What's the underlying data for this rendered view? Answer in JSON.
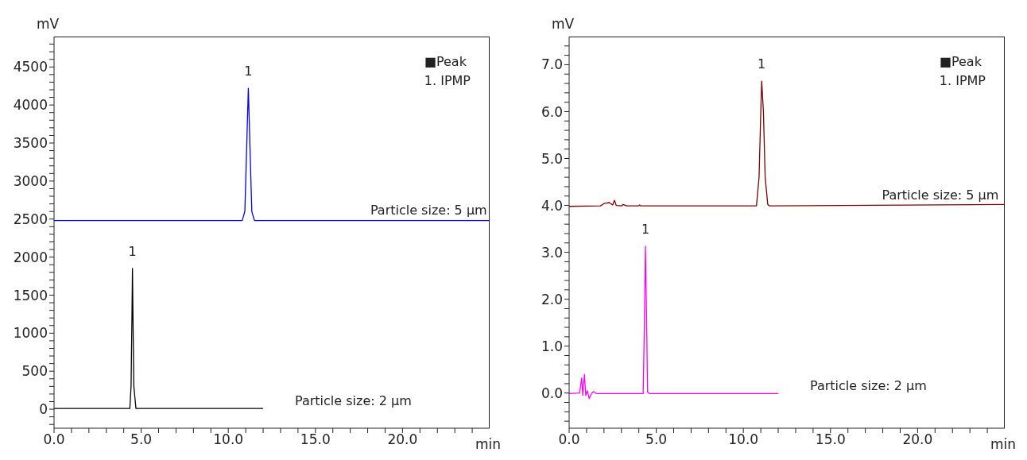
{
  "chart_data": [
    {
      "type": "line",
      "xlabel": "min",
      "ylabel": "mV",
      "marker": "none",
      "line_style": "solid",
      "xlim": [
        0,
        25
      ],
      "ylim": [
        -250,
        4900
      ],
      "xticks": [
        {
          "value": 0,
          "label": "0.0"
        },
        {
          "value": 1,
          "label": null
        },
        {
          "value": 2,
          "label": null
        },
        {
          "value": 3,
          "label": null
        },
        {
          "value": 4,
          "label": null
        },
        {
          "value": 5,
          "label": "5.0"
        },
        {
          "value": 6,
          "label": null
        },
        {
          "value": 7,
          "label": null
        },
        {
          "value": 8,
          "label": null
        },
        {
          "value": 9,
          "label": null
        },
        {
          "value": 10,
          "label": "10.0"
        },
        {
          "value": 11,
          "label": null
        },
        {
          "value": 12,
          "label": null
        },
        {
          "value": 13,
          "label": null
        },
        {
          "value": 14,
          "label": null
        },
        {
          "value": 15,
          "label": "15.0"
        },
        {
          "value": 16,
          "label": null
        },
        {
          "value": 17,
          "label": null
        },
        {
          "value": 18,
          "label": null
        },
        {
          "value": 19,
          "label": null
        },
        {
          "value": 20,
          "label": "20.0"
        },
        {
          "value": 21,
          "label": null
        },
        {
          "value": 22,
          "label": null
        },
        {
          "value": 23,
          "label": null
        },
        {
          "value": 24,
          "label": null
        }
      ],
      "yticks": [
        {
          "value": -200,
          "label": null
        },
        {
          "value": -100,
          "label": null
        },
        0,
        {
          "value": 100,
          "label": null
        },
        {
          "value": 200,
          "label": null
        },
        {
          "value": 300,
          "label": null
        },
        {
          "value": 400,
          "label": null
        },
        500,
        {
          "value": 600,
          "label": null
        },
        {
          "value": 700,
          "label": null
        },
        {
          "value": 800,
          "label": null
        },
        {
          "value": 900,
          "label": null
        },
        1000,
        {
          "value": 1100,
          "label": null
        },
        {
          "value": 1200,
          "label": null
        },
        {
          "value": 1300,
          "label": null
        },
        {
          "value": 1400,
          "label": null
        },
        1500,
        {
          "value": 1600,
          "label": null
        },
        {
          "value": 1700,
          "label": null
        },
        {
          "value": 1800,
          "label": null
        },
        {
          "value": 1900,
          "label": null
        },
        2000,
        {
          "value": 2100,
          "label": null
        },
        {
          "value": 2200,
          "label": null
        },
        {
          "value": 2300,
          "label": null
        },
        {
          "value": 2400,
          "label": null
        },
        2500,
        {
          "value": 2600,
          "label": null
        },
        {
          "value": 2700,
          "label": null
        },
        {
          "value": 2800,
          "label": null
        },
        {
          "value": 2900,
          "label": null
        },
        3000,
        {
          "value": 3100,
          "label": null
        },
        {
          "value": 3200,
          "label": null
        },
        {
          "value": 3300,
          "label": null
        },
        {
          "value": 3400,
          "label": null
        },
        3500,
        {
          "value": 3600,
          "label": null
        },
        {
          "value": 3700,
          "label": null
        },
        {
          "value": 3800,
          "label": null
        },
        {
          "value": 3900,
          "label": null
        },
        4000,
        {
          "value": 4100,
          "label": null
        },
        {
          "value": 4200,
          "label": null
        },
        {
          "value": 4300,
          "label": null
        },
        {
          "value": 4400,
          "label": null
        },
        4500,
        {
          "value": 4600,
          "label": null
        },
        {
          "value": 4700,
          "label": null
        },
        {
          "value": 4800,
          "label": null
        }
      ],
      "series": [
        {
          "color": "#0000ff",
          "x": [
            0,
            10.8,
            10.95,
            11.05,
            11.15,
            11.25,
            11.35,
            11.5,
            25
          ],
          "values": [
            2480,
            2480,
            2600,
            3400,
            4220,
            3400,
            2600,
            2480,
            2480
          ]
        },
        {
          "color": "#000000",
          "x": [
            0,
            4.35,
            4.42,
            4.47,
            4.5,
            4.53,
            4.58,
            4.7,
            12
          ],
          "values": [
            10,
            10,
            300,
            1200,
            1850,
            1200,
            300,
            10,
            10
          ]
        }
      ],
      "annotations": [
        "■Peak",
        "1. IPMP",
        {
          "text": "1",
          "x": 11.15,
          "y": 4220
        },
        {
          "text": "1",
          "x": 4.5,
          "y": 1850
        },
        {
          "text": "Particle size: 5 µm",
          "x": 21.5,
          "y": 2480
        },
        {
          "text": "Particle size: 2 µm",
          "x": 12,
          "y": 10
        }
      ]
    },
    {
      "type": "line",
      "xlabel": "min",
      "ylabel": "mV",
      "marker": "none",
      "line_style": "solid",
      "xlim": [
        0,
        25
      ],
      "ylim": [
        -0.75,
        7.6
      ],
      "xticks": [
        {
          "value": 0,
          "label": "0.0"
        },
        {
          "value": 1,
          "label": null
        },
        {
          "value": 2,
          "label": null
        },
        {
          "value": 3,
          "label": null
        },
        {
          "value": 4,
          "label": null
        },
        {
          "value": 5,
          "label": "5.0"
        },
        {
          "value": 6,
          "label": null
        },
        {
          "value": 7,
          "label": null
        },
        {
          "value": 8,
          "label": null
        },
        {
          "value": 9,
          "label": null
        },
        {
          "value": 10,
          "label": "10.0"
        },
        {
          "value": 11,
          "label": null
        },
        {
          "value": 12,
          "label": null
        },
        {
          "value": 13,
          "label": null
        },
        {
          "value": 14,
          "label": null
        },
        {
          "value": 15,
          "label": "15.0"
        },
        {
          "value": 16,
          "label": null
        },
        {
          "value": 17,
          "label": null
        },
        {
          "value": 18,
          "label": null
        },
        {
          "value": 19,
          "label": null
        },
        {
          "value": 20,
          "label": "20.0"
        },
        {
          "value": 21,
          "label": null
        },
        {
          "value": 22,
          "label": null
        },
        {
          "value": 23,
          "label": null
        },
        {
          "value": 24,
          "label": null
        }
      ],
      "yticks": [
        {
          "value": -0.6,
          "label": null
        },
        {
          "value": -0.4,
          "label": null
        },
        {
          "value": -0.2,
          "label": null
        },
        {
          "value": 0,
          "label": "0.0"
        },
        {
          "value": 0.2,
          "label": null
        },
        {
          "value": 0.4,
          "label": null
        },
        {
          "value": 0.6,
          "label": null
        },
        {
          "value": 0.8,
          "label": null
        },
        {
          "value": 1,
          "label": "1.0"
        },
        {
          "value": 1.2,
          "label": null
        },
        {
          "value": 1.4,
          "label": null
        },
        {
          "value": 1.6,
          "label": null
        },
        {
          "value": 1.8,
          "label": null
        },
        {
          "value": 2,
          "label": "2.0"
        },
        {
          "value": 2.2,
          "label": null
        },
        {
          "value": 2.4,
          "label": null
        },
        {
          "value": 2.6,
          "label": null
        },
        {
          "value": 2.8,
          "label": null
        },
        {
          "value": 3,
          "label": "3.0"
        },
        {
          "value": 3.2,
          "label": null
        },
        {
          "value": 3.4,
          "label": null
        },
        {
          "value": 3.6,
          "label": null
        },
        {
          "value": 3.8,
          "label": null
        },
        {
          "value": 4,
          "label": "4.0"
        },
        {
          "value": 4.2,
          "label": null
        },
        {
          "value": 4.4,
          "label": null
        },
        {
          "value": 4.6,
          "label": null
        },
        {
          "value": 4.8,
          "label": null
        },
        {
          "value": 5,
          "label": "5.0"
        },
        {
          "value": 5.2,
          "label": null
        },
        {
          "value": 5.4,
          "label": null
        },
        {
          "value": 5.6,
          "label": null
        },
        {
          "value": 5.8,
          "label": null
        },
        {
          "value": 6,
          "label": "6.0"
        },
        {
          "value": 6.2,
          "label": null
        },
        {
          "value": 6.4,
          "label": null
        },
        {
          "value": 6.6,
          "label": null
        },
        {
          "value": 6.8,
          "label": null
        },
        {
          "value": 7,
          "label": "7.0"
        },
        {
          "value": 7.2,
          "label": null
        },
        {
          "value": 7.4,
          "label": null
        }
      ],
      "series": [
        {
          "color": "#800000",
          "x": [
            0,
            1.8,
            2.0,
            2.3,
            2.5,
            2.6,
            2.7,
            3.0,
            3.1,
            3.3,
            4.0,
            4.05,
            4.1,
            10.75,
            10.9,
            11.0,
            11.05,
            11.15,
            11.25,
            11.4,
            11.5,
            25
          ],
          "values": [
            3.98,
            3.99,
            4.04,
            4.06,
            4.01,
            4.11,
            4.0,
            3.99,
            4.02,
            3.99,
            3.99,
            4.01,
            3.99,
            3.99,
            4.6,
            6.0,
            6.65,
            6.0,
            4.6,
            4.02,
            3.99,
            4.02
          ]
        },
        {
          "color": "#ff00ff",
          "x": [
            0,
            0.6,
            0.72,
            0.78,
            0.88,
            0.95,
            1.05,
            1.15,
            1.3,
            1.4,
            1.55,
            4.25,
            4.32,
            4.38,
            4.45,
            4.5,
            4.6,
            12
          ],
          "values": [
            -0.01,
            0,
            0.32,
            -0.05,
            0.4,
            -0.05,
            0.05,
            -0.12,
            0,
            0.03,
            -0.01,
            -0.01,
            1.5,
            3.13,
            1.5,
            0.02,
            -0.01,
            -0.01
          ]
        }
      ],
      "annotations": [
        "■Peak",
        "1. IPMP",
        {
          "text": "1",
          "x": 11.05,
          "y": 6.65
        },
        {
          "text": "1",
          "x": 4.38,
          "y": 3.13
        },
        {
          "text": "Particle size: 5 µm",
          "x": 21.3,
          "y": 4.0
        },
        {
          "text": "Particle size: 2 µm",
          "x": 12,
          "y": -0.01
        }
      ]
    }
  ]
}
